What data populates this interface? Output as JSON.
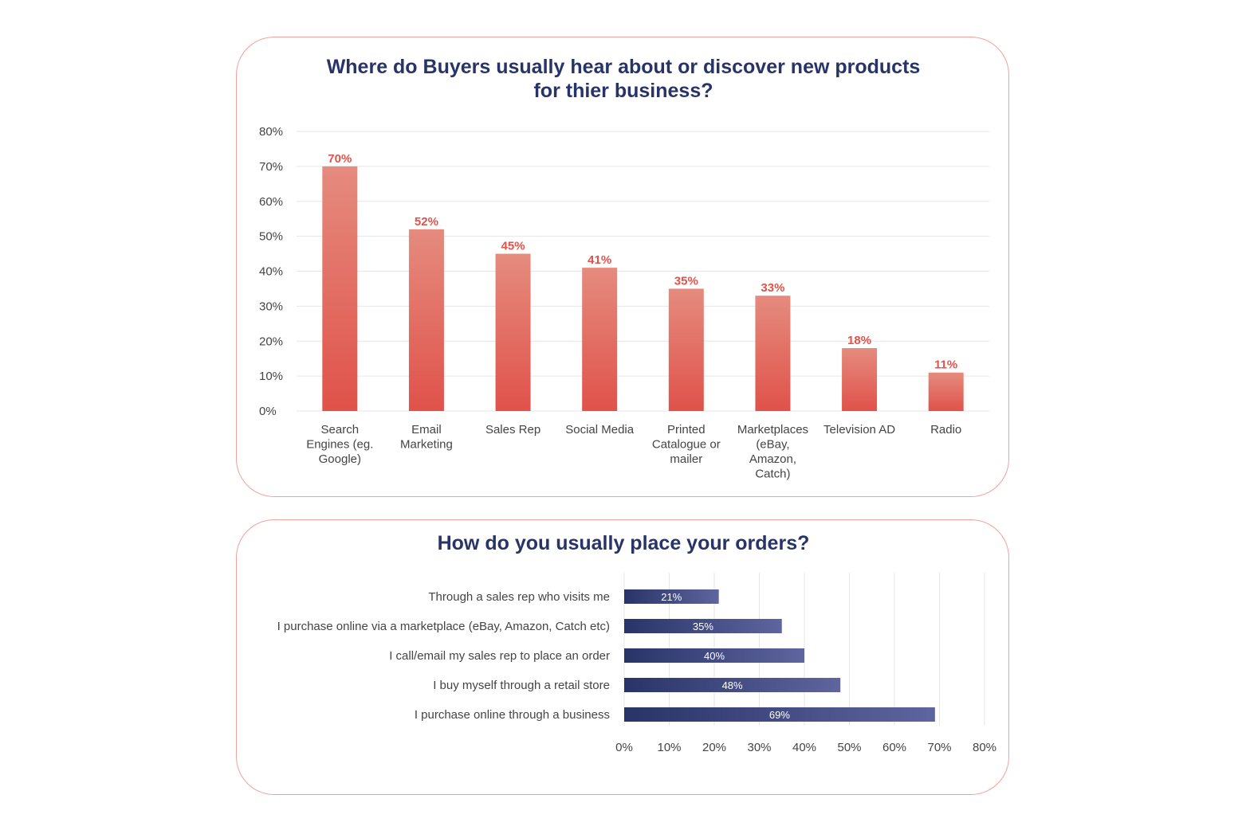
{
  "colors": {
    "title": "#283468",
    "border": "#f0a19b",
    "bar_top": "#e58b7e",
    "bar_bottom": "#e0524a",
    "bar_label": "#e0524a",
    "hbar_left": "#283468",
    "hbar_right": "#5f659e",
    "grid": "#e6e6e6",
    "axis_text": "#444444"
  },
  "chart_data": [
    {
      "type": "bar",
      "title_lines": [
        "Where do Buyers usually hear about or discover new products",
        "for thier business?"
      ],
      "categories": [
        [
          "Search",
          "Engines (eg.",
          "Google)"
        ],
        [
          "Email",
          "Marketing"
        ],
        [
          "Sales Rep"
        ],
        [
          "Social Media"
        ],
        [
          "Printed",
          "Catalogue or",
          "mailer"
        ],
        [
          "Marketplaces",
          "(eBay,",
          "Amazon,",
          "Catch)"
        ],
        [
          "Television AD"
        ],
        [
          "Radio"
        ]
      ],
      "values": [
        70,
        52,
        45,
        41,
        35,
        33,
        18,
        11
      ],
      "value_labels": [
        "70%",
        "52%",
        "45%",
        "41%",
        "35%",
        "33%",
        "18%",
        "11%"
      ],
      "ylim": [
        0,
        80
      ],
      "yticks": [
        0,
        10,
        20,
        30,
        40,
        50,
        60,
        70,
        80
      ],
      "ytick_labels": [
        "0%",
        "10%",
        "20%",
        "30%",
        "40%",
        "50%",
        "60%",
        "70%",
        "80%"
      ],
      "grid": true
    },
    {
      "type": "bar",
      "orientation": "horizontal",
      "title_lines": [
        "How do you usually place your orders?"
      ],
      "categories": [
        "Through a sales rep who visits me",
        "I purchase online via a marketplace (eBay, Amazon, Catch etc)",
        "I call/email my sales rep to place an order",
        "I buy myself through a retail store",
        "I purchase online through a business"
      ],
      "values": [
        21,
        35,
        40,
        48,
        69
      ],
      "value_labels": [
        "21%",
        "35%",
        "40%",
        "48%",
        "69%"
      ],
      "xlim": [
        0,
        80
      ],
      "xticks": [
        0,
        10,
        20,
        30,
        40,
        50,
        60,
        70,
        80
      ],
      "xtick_labels": [
        "0%",
        "10%",
        "20%",
        "30%",
        "40%",
        "50%",
        "60%",
        "70%",
        "80%"
      ],
      "grid": true
    }
  ]
}
